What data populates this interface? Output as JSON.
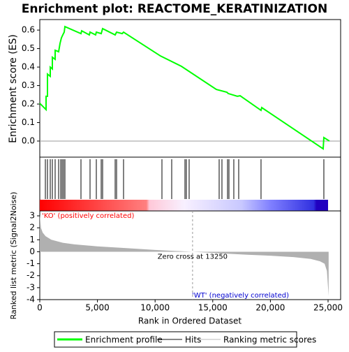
{
  "chart_data": [
    {
      "type": "line",
      "title": "Enrichment plot: REACTOME_KERATINIZATION",
      "ylabel": "Enrichment score (ES)",
      "series": [
        {
          "name": "Enrichment profile",
          "color": "#00ff00",
          "x": [
            0,
            545,
            545,
            666,
            666,
            908,
            908,
            1090,
            1090,
            1332,
            1332,
            1634,
            1755,
            1876,
            1997,
            2119,
            2179,
            3571,
            3632,
            4298,
            4358,
            4842,
            4903,
            5327,
            5448,
            6537,
            6658,
            7143,
            7264,
            10472,
            12288,
            15314,
            16222,
            16343,
            17130,
            17372,
            19187,
            19248,
            24575,
            24636,
            25120
          ],
          "values": [
            0.204,
            0.17,
            0.242,
            0.242,
            0.362,
            0.35,
            0.4,
            0.39,
            0.453,
            0.442,
            0.491,
            0.483,
            0.528,
            0.558,
            0.574,
            0.589,
            0.619,
            0.581,
            0.596,
            0.574,
            0.589,
            0.574,
            0.589,
            0.581,
            0.608,
            0.574,
            0.589,
            0.581,
            0.589,
            0.46,
            0.404,
            0.279,
            0.264,
            0.257,
            0.242,
            0.245,
            0.166,
            0.181,
            -0.042,
            0.019,
            0.0
          ]
        }
      ],
      "xlim": [
        0,
        26090
      ],
      "ylim": [
        -0.087,
        0.657
      ],
      "yticks": [
        {
          "value": 0,
          "label": "0.0"
        },
        {
          "value": 0.1,
          "label": "0.1"
        },
        {
          "value": 0.2,
          "label": "0.2"
        },
        {
          "value": 0.3,
          "label": "0.3"
        },
        {
          "value": 0.4,
          "label": "0.4"
        },
        {
          "value": 0.5,
          "label": "0.5"
        },
        {
          "value": 0.6,
          "label": "0.6"
        }
      ]
    },
    {
      "type": "hits",
      "series": [
        {
          "name": "Hits",
          "color": "#000000",
          "x": [
            484,
            666,
            908,
            1090,
            1332,
            1634,
            1816,
            1937,
            2058,
            2179,
            3571,
            4358,
            4903,
            5327,
            5448,
            6537,
            6658,
            7264,
            10593,
            11441,
            12590,
            12711,
            12953,
            15556,
            15798,
            16283,
            16404,
            16827,
            17251,
            19187,
            24636
          ]
        }
      ],
      "xlim": [
        0,
        26090
      ]
    },
    {
      "type": "area",
      "ylabel": "Ranked list metric (Signal2Noise)",
      "xlabel": "Rank in Ordered Dataset",
      "series": [
        {
          "name": "Ranking metric scores",
          "color": "#b0b0b0",
          "x": [
            0,
            100,
            250,
            500,
            1000,
            2000,
            3000,
            5000,
            7500,
            10000,
            13250,
            15000,
            18000,
            20000,
            22000,
            23500,
            24300,
            24700,
            24900,
            25000,
            25050
          ],
          "values": [
            3.1,
            2.0,
            1.6,
            1.3,
            1.0,
            0.75,
            0.62,
            0.45,
            0.3,
            0.15,
            0.0,
            -0.1,
            -0.25,
            -0.33,
            -0.45,
            -0.6,
            -0.8,
            -1.0,
            -1.6,
            -3.0,
            -3.7
          ]
        }
      ],
      "zero_cross": 13250,
      "annotation": "Zero cross at 13250",
      "pos_label": "'KO' (positively correlated)",
      "neg_label": "'WT' (negatively correlated)",
      "xlim": [
        0,
        26090
      ],
      "ylim": [
        -4,
        3.41
      ],
      "yticks": [
        3,
        2,
        1,
        0,
        -1,
        -2,
        -3,
        -4
      ],
      "xticks": [
        0,
        {
          "value": 5000,
          "label": "5,000"
        },
        {
          "value": 10000,
          "label": "10,000"
        },
        {
          "value": 15000,
          "label": "15,000"
        },
        {
          "value": 20000,
          "label": "20,000"
        },
        {
          "value": 25000,
          "label": "25,000"
        }
      ]
    }
  ]
}
